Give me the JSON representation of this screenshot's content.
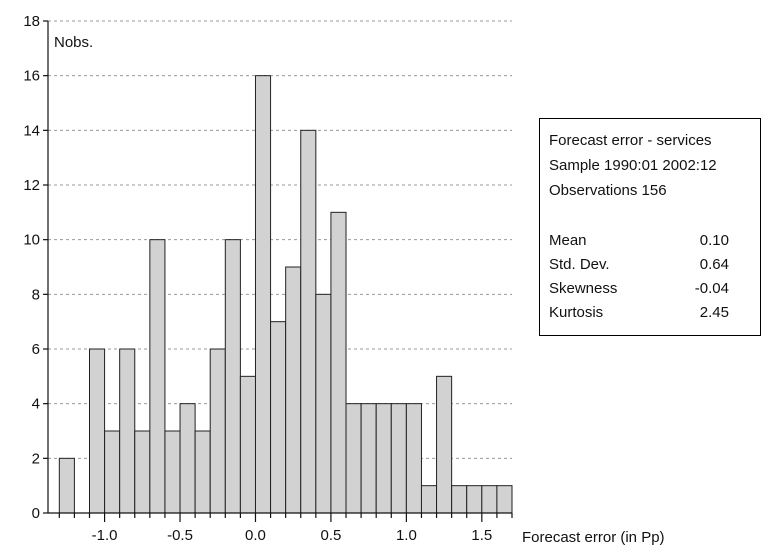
{
  "chart_data": {
    "type": "bar",
    "title": "",
    "ylabel": "Nobs.",
    "xlabel": "Forecast error (in Pp)",
    "ylim": [
      0,
      18
    ],
    "xlim": [
      -1.375,
      1.7
    ],
    "bin_width": 0.1,
    "yticks": [
      0,
      2,
      4,
      6,
      8,
      10,
      12,
      14,
      16,
      18
    ],
    "xticks": [
      -1.0,
      -0.5,
      0.0,
      0.5,
      1.0,
      1.5
    ],
    "ytick_labels": [
      "0",
      "2",
      "4",
      "6",
      "8",
      "10",
      "12",
      "14",
      "16",
      "18"
    ],
    "xtick_labels": [
      "-1.0",
      "-0.5",
      "0.0",
      "0.5",
      "1.0",
      "1.5"
    ],
    "bins": [
      {
        "start": -1.3,
        "end": -1.2,
        "count": 2
      },
      {
        "start": -1.2,
        "end": -1.1,
        "count": 0
      },
      {
        "start": -1.1,
        "end": -1.0,
        "count": 6
      },
      {
        "start": -1.0,
        "end": -0.9,
        "count": 3
      },
      {
        "start": -0.9,
        "end": -0.8,
        "count": 6
      },
      {
        "start": -0.8,
        "end": -0.7,
        "count": 3
      },
      {
        "start": -0.7,
        "end": -0.6,
        "count": 10
      },
      {
        "start": -0.6,
        "end": -0.5,
        "count": 3
      },
      {
        "start": -0.5,
        "end": -0.4,
        "count": 4
      },
      {
        "start": -0.4,
        "end": -0.3,
        "count": 3
      },
      {
        "start": -0.3,
        "end": -0.2,
        "count": 6
      },
      {
        "start": -0.2,
        "end": -0.1,
        "count": 10
      },
      {
        "start": -0.1,
        "end": 0.0,
        "count": 5
      },
      {
        "start": 0.0,
        "end": 0.1,
        "count": 16
      },
      {
        "start": 0.1,
        "end": 0.2,
        "count": 7
      },
      {
        "start": 0.2,
        "end": 0.3,
        "count": 9
      },
      {
        "start": 0.3,
        "end": 0.4,
        "count": 14
      },
      {
        "start": 0.4,
        "end": 0.5,
        "count": 8
      },
      {
        "start": 0.5,
        "end": 0.6,
        "count": 11
      },
      {
        "start": 0.6,
        "end": 0.7,
        "count": 4
      },
      {
        "start": 0.7,
        "end": 0.8,
        "count": 4
      },
      {
        "start": 0.8,
        "end": 0.9,
        "count": 4
      },
      {
        "start": 0.9,
        "end": 1.0,
        "count": 4
      },
      {
        "start": 1.0,
        "end": 1.1,
        "count": 4
      },
      {
        "start": 1.1,
        "end": 1.2,
        "count": 1
      },
      {
        "start": 1.2,
        "end": 1.3,
        "count": 5
      },
      {
        "start": 1.3,
        "end": 1.4,
        "count": 1
      },
      {
        "start": 1.4,
        "end": 1.5,
        "count": 1
      },
      {
        "start": 1.5,
        "end": 1.6,
        "count": 1
      },
      {
        "start": 1.6,
        "end": 1.7,
        "count": 1
      }
    ],
    "grid": "horizontal-dashed",
    "bar_color": "#d2d2d2",
    "bar_edge_color": "#222222"
  },
  "stats": {
    "series": "Forecast error - services",
    "sample": "Sample 1990:01 2002:12",
    "observations": "Observations 156",
    "rows": [
      {
        "label": "Mean",
        "value": "0.10"
      },
      {
        "label": "Std. Dev.",
        "value": "0.64"
      },
      {
        "label": "Skewness",
        "value": "-0.04"
      },
      {
        "label": "Kurtosis",
        "value": "2.45"
      }
    ]
  }
}
